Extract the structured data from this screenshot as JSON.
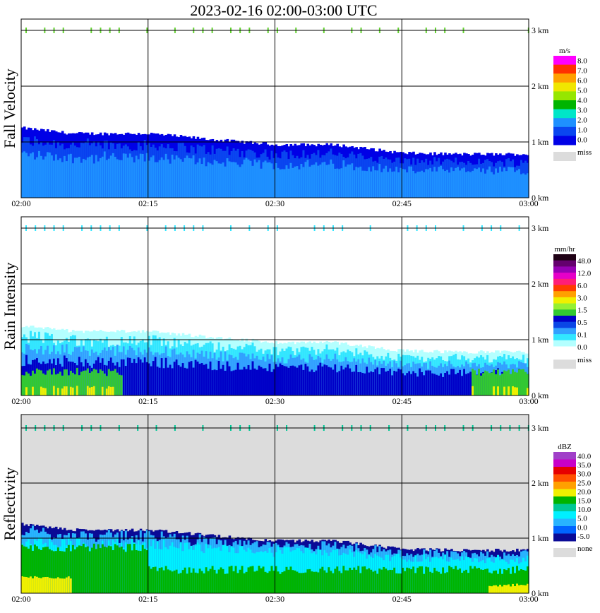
{
  "title": "2023-02-16   02:00-03:00 UTC",
  "time_ticks": [
    "02:00",
    "02:15",
    "02:30",
    "02:45",
    "03:00"
  ],
  "height_ticks": [
    "0 km",
    "1 km",
    "2 km",
    "3 km"
  ],
  "panels": [
    {
      "id": "fall-velocity",
      "ylabel": "Fall Velocity",
      "unit": "m/s",
      "background": "#ffffff",
      "colorbar": {
        "colors": [
          "#0000e6",
          "#0a46f0",
          "#1e90ff",
          "#00e6c8",
          "#00b400",
          "#96e600",
          "#f0e600",
          "#ffa000",
          "#ff3200",
          "#ff00ff"
        ],
        "labels": [
          "0.0",
          "1.0",
          "2.0",
          "3.0",
          "4.0",
          "5.0",
          "6.0",
          "7.0",
          "8.0"
        ],
        "miss_color": "#dcdcdc",
        "miss_label": "miss"
      }
    },
    {
      "id": "rain-intensity",
      "ylabel": "Rain Intensity",
      "unit": "mm/hr",
      "background": "#ffffff",
      "colorbar": {
        "colors": [
          "#ffffff",
          "#b4ffff",
          "#32e6ff",
          "#32a0ff",
          "#0a46e6",
          "#0000c8",
          "#32c832",
          "#96f032",
          "#f0f000",
          "#ffa000",
          "#ff3c00",
          "#ff1e78",
          "#e600c8",
          "#9600b4",
          "#64006e",
          "#1e0014"
        ],
        "labels": [
          "0.0",
          "0.1",
          "0.5",
          "1.5",
          "3.0",
          "6.0",
          "12.0",
          "48.0"
        ],
        "miss_color": "#dcdcdc",
        "miss_label": "miss"
      }
    },
    {
      "id": "reflectivity",
      "ylabel": "Reflectivity",
      "unit": "dBZ",
      "background": "#dcdcdc",
      "colorbar": {
        "colors": [
          "#0a0a96",
          "#0064ff",
          "#28b4ff",
          "#00f0ff",
          "#00c896",
          "#00b400",
          "#f0f000",
          "#ffa000",
          "#ff5000",
          "#e60000",
          "#c800c8",
          "#a040c8"
        ],
        "labels": [
          "-5.0",
          "0.0",
          "5.0",
          "10.0",
          "15.0",
          "20.0",
          "25.0",
          "30.0",
          "35.0",
          "40.0"
        ],
        "miss_color": "#dcdcdc",
        "miss_label": "none"
      }
    }
  ],
  "chart_data": [
    {
      "type": "heatmap",
      "title": "2023-02-16   02:00-03:00 UTC",
      "ylabel": "Fall Velocity",
      "colorbar_unit": "m/s",
      "x_range": [
        "02:00",
        "03:00"
      ],
      "y_range_km": [
        0,
        3.1
      ],
      "echo_top_km": [
        {
          "t": "02:00",
          "km": 1.25
        },
        {
          "t": "02:06",
          "km": 1.15
        },
        {
          "t": "02:15",
          "km": 1.15
        },
        {
          "t": "02:22",
          "km": 1.05
        },
        {
          "t": "02:30",
          "km": 0.95
        },
        {
          "t": "02:37",
          "km": 0.95
        },
        {
          "t": "02:45",
          "km": 0.8
        },
        {
          "t": "02:52",
          "km": 0.78
        },
        {
          "t": "03:00",
          "km": 0.78
        }
      ]
    },
    {
      "type": "heatmap",
      "title": "2023-02-16   02:00-03:00 UTC",
      "ylabel": "Rain Intensity",
      "colorbar_unit": "mm/hr",
      "x_range": [
        "02:00",
        "03:00"
      ],
      "y_range_km": [
        0,
        3.1
      ],
      "echo_top_km": [
        {
          "t": "02:00",
          "km": 1.25
        },
        {
          "t": "02:06",
          "km": 1.15
        },
        {
          "t": "02:15",
          "km": 1.15
        },
        {
          "t": "02:22",
          "km": 1.05
        },
        {
          "t": "02:30",
          "km": 0.95
        },
        {
          "t": "02:37",
          "km": 0.95
        },
        {
          "t": "02:45",
          "km": 0.8
        },
        {
          "t": "02:52",
          "km": 0.78
        },
        {
          "t": "03:00",
          "km": 0.78
        }
      ]
    },
    {
      "type": "heatmap",
      "title": "2023-02-16   02:00-03:00 UTC",
      "ylabel": "Reflectivity",
      "colorbar_unit": "dBZ",
      "x_range": [
        "02:00",
        "03:00"
      ],
      "y_range_km": [
        0,
        3.1
      ],
      "echo_top_km": [
        {
          "t": "02:00",
          "km": 1.25
        },
        {
          "t": "02:06",
          "km": 1.15
        },
        {
          "t": "02:15",
          "km": 1.15
        },
        {
          "t": "02:22",
          "km": 1.05
        },
        {
          "t": "02:30",
          "km": 0.95
        },
        {
          "t": "02:37",
          "km": 0.95
        },
        {
          "t": "02:45",
          "km": 0.8
        },
        {
          "t": "02:52",
          "km": 0.78
        },
        {
          "t": "03:00",
          "km": 0.78
        }
      ]
    }
  ]
}
